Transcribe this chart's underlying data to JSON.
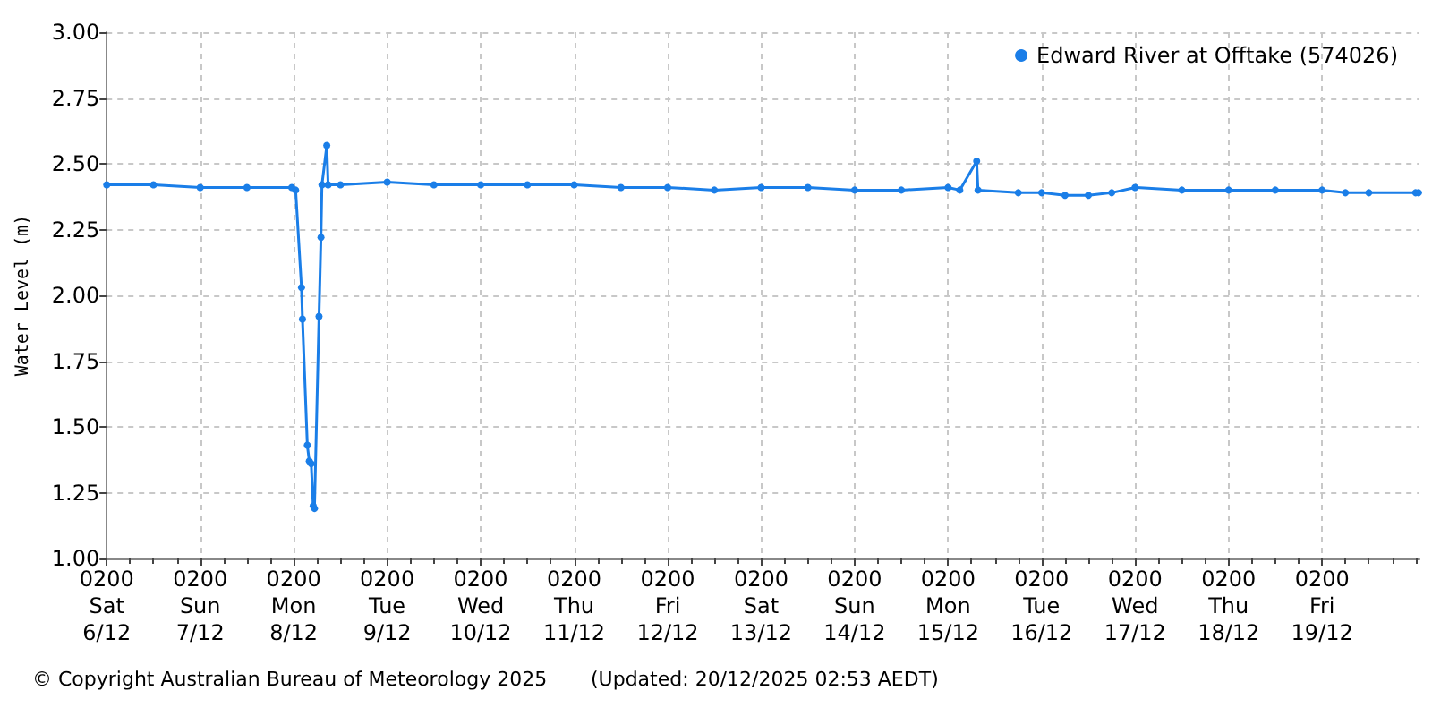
{
  "chart_data": {
    "type": "line",
    "ylabel": "Water Level (m)",
    "legend": "top right",
    "grid": true,
    "marker": "circle",
    "line_style": "solid",
    "annotations": [
      "© Copyright Australian Bureau of Meteorology 2025",
      "(Updated: 20/12/2025 02:53 AEDT)"
    ],
    "xlim": [
      "2025-12-06T02:00",
      "2025-12-20T03:00"
    ],
    "ylim": [
      1,
      3
    ],
    "yticks": [
      {
        "value": 1,
        "label": "1.00"
      },
      {
        "value": 1.25,
        "label": "1.25"
      },
      {
        "value": 1.5,
        "label": "1.50"
      },
      {
        "value": 1.75,
        "label": "1.75"
      },
      {
        "value": 2,
        "label": "2.00"
      },
      {
        "value": 2.25,
        "label": "2.25"
      },
      {
        "value": 2.5,
        "label": "2.50"
      },
      {
        "value": 2.75,
        "label": "2.75"
      },
      {
        "value": 3,
        "label": "3.00"
      }
    ],
    "xticks": [
      {
        "value": "2025-12-06T02:00",
        "label": "0200\nSat\n6/12"
      },
      {
        "value": "2025-12-06T08:00",
        "label": null
      },
      {
        "value": "2025-12-06T14:00",
        "label": null
      },
      {
        "value": "2025-12-06T20:00",
        "label": null
      },
      {
        "value": "2025-12-07T02:00",
        "label": "0200\nSun\n7/12"
      },
      {
        "value": "2025-12-07T08:00",
        "label": null
      },
      {
        "value": "2025-12-07T14:00",
        "label": null
      },
      {
        "value": "2025-12-07T20:00",
        "label": null
      },
      {
        "value": "2025-12-08T02:00",
        "label": "0200\nMon\n8/12"
      },
      {
        "value": "2025-12-08T08:00",
        "label": null
      },
      {
        "value": "2025-12-08T14:00",
        "label": null
      },
      {
        "value": "2025-12-08T20:00",
        "label": null
      },
      {
        "value": "2025-12-09T02:00",
        "label": "0200\nTue\n9/12"
      },
      {
        "value": "2025-12-09T08:00",
        "label": null
      },
      {
        "value": "2025-12-09T14:00",
        "label": null
      },
      {
        "value": "2025-12-09T20:00",
        "label": null
      },
      {
        "value": "2025-12-10T02:00",
        "label": "0200\nWed\n10/12"
      },
      {
        "value": "2025-12-10T08:00",
        "label": null
      },
      {
        "value": "2025-12-10T14:00",
        "label": null
      },
      {
        "value": "2025-12-10T20:00",
        "label": null
      },
      {
        "value": "2025-12-11T02:00",
        "label": "0200\nThu\n11/12"
      },
      {
        "value": "2025-12-11T08:00",
        "label": null
      },
      {
        "value": "2025-12-11T14:00",
        "label": null
      },
      {
        "value": "2025-12-11T20:00",
        "label": null
      },
      {
        "value": "2025-12-12T02:00",
        "label": "0200\nFri\n12/12"
      },
      {
        "value": "2025-12-12T08:00",
        "label": null
      },
      {
        "value": "2025-12-12T14:00",
        "label": null
      },
      {
        "value": "2025-12-12T20:00",
        "label": null
      },
      {
        "value": "2025-12-13T02:00",
        "label": "0200\nSat\n13/12"
      },
      {
        "value": "2025-12-13T08:00",
        "label": null
      },
      {
        "value": "2025-12-13T14:00",
        "label": null
      },
      {
        "value": "2025-12-13T20:00",
        "label": null
      },
      {
        "value": "2025-12-14T02:00",
        "label": "0200\nSun\n14/12"
      },
      {
        "value": "2025-12-14T08:00",
        "label": null
      },
      {
        "value": "2025-12-14T14:00",
        "label": null
      },
      {
        "value": "2025-12-14T20:00",
        "label": null
      },
      {
        "value": "2025-12-15T02:00",
        "label": "0200\nMon\n15/12"
      },
      {
        "value": "2025-12-15T08:00",
        "label": null
      },
      {
        "value": "2025-12-15T14:00",
        "label": null
      },
      {
        "value": "2025-12-15T20:00",
        "label": null
      },
      {
        "value": "2025-12-16T02:00",
        "label": "0200\nTue\n16/12"
      },
      {
        "value": "2025-12-16T08:00",
        "label": null
      },
      {
        "value": "2025-12-16T14:00",
        "label": null
      },
      {
        "value": "2025-12-16T20:00",
        "label": null
      },
      {
        "value": "2025-12-17T02:00",
        "label": "0200\nWed\n17/12"
      },
      {
        "value": "2025-12-17T08:00",
        "label": null
      },
      {
        "value": "2025-12-17T14:00",
        "label": null
      },
      {
        "value": "2025-12-17T20:00",
        "label": null
      },
      {
        "value": "2025-12-18T02:00",
        "label": "0200\nThu\n18/12"
      },
      {
        "value": "2025-12-18T08:00",
        "label": null
      },
      {
        "value": "2025-12-18T14:00",
        "label": null
      },
      {
        "value": "2025-12-18T20:00",
        "label": null
      },
      {
        "value": "2025-12-19T02:00",
        "label": "0200\nFri\n19/12"
      },
      {
        "value": "2025-12-19T08:00",
        "label": null
      },
      {
        "value": "2025-12-19T14:00",
        "label": null
      },
      {
        "value": "2025-12-19T20:00",
        "label": null
      },
      {
        "value": "2025-12-20T02:00",
        "label": null
      }
    ],
    "series": [
      {
        "name": "Edward River at Offtake (574026)",
        "color": "#1a7ee8",
        "x": [
          "2025-12-06T02:00",
          "2025-12-06T14:00",
          "2025-12-07T02:00",
          "2025-12-07T14:00",
          "2025-12-08T01:30",
          "2025-12-08T02:30",
          "2025-12-08T04:00",
          "2025-12-08T04:15",
          "2025-12-08T05:30",
          "2025-12-08T06:00",
          "2025-12-08T06:30",
          "2025-12-08T07:00",
          "2025-12-08T07:20",
          "2025-12-08T08:30",
          "2025-12-08T09:00",
          "2025-12-08T09:15",
          "2025-12-08T10:30",
          "2025-12-08T10:50",
          "2025-12-08T14:00",
          "2025-12-09T02:00",
          "2025-12-09T14:00",
          "2025-12-10T02:00",
          "2025-12-10T14:00",
          "2025-12-11T02:00",
          "2025-12-11T14:00",
          "2025-12-12T02:00",
          "2025-12-12T14:00",
          "2025-12-13T02:00",
          "2025-12-13T14:00",
          "2025-12-14T02:00",
          "2025-12-14T14:00",
          "2025-12-15T02:00",
          "2025-12-15T05:00",
          "2025-12-15T09:20",
          "2025-12-15T09:40",
          "2025-12-15T20:00",
          "2025-12-16T02:00",
          "2025-12-16T08:00",
          "2025-12-16T14:00",
          "2025-12-16T20:00",
          "2025-12-17T02:00",
          "2025-12-17T14:00",
          "2025-12-18T02:00",
          "2025-12-18T14:00",
          "2025-12-19T02:00",
          "2025-12-19T08:00",
          "2025-12-19T14:00",
          "2025-12-20T02:00",
          "2025-12-20T02:45"
        ],
        "values": [
          2.42,
          2.42,
          2.41,
          2.41,
          2.41,
          2.4,
          2.03,
          1.91,
          1.43,
          1.37,
          1.36,
          1.2,
          1.19,
          1.92,
          2.22,
          2.42,
          2.57,
          2.42,
          2.42,
          2.43,
          2.42,
          2.42,
          2.42,
          2.42,
          2.41,
          2.41,
          2.4,
          2.41,
          2.41,
          2.4,
          2.4,
          2.41,
          2.4,
          2.51,
          2.4,
          2.39,
          2.39,
          2.38,
          2.38,
          2.39,
          2.41,
          2.4,
          2.4,
          2.4,
          2.4,
          2.39,
          2.39,
          2.39,
          2.39
        ]
      }
    ]
  }
}
